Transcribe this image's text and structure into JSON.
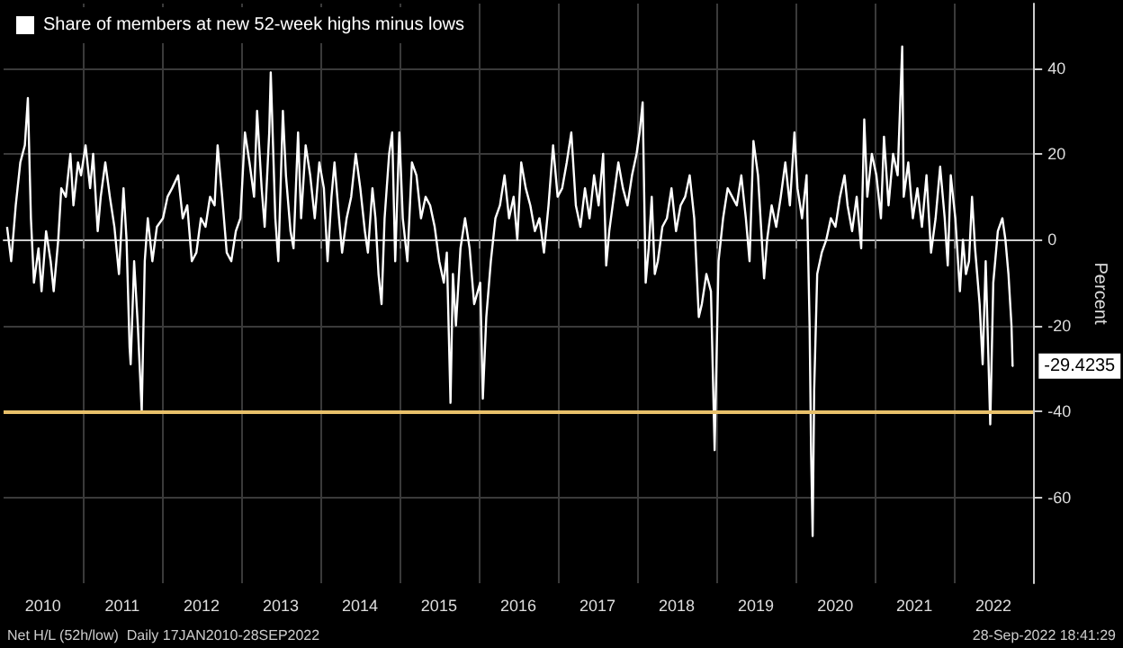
{
  "chart_data": {
    "type": "line",
    "ylabel": "Percent",
    "legend": "top left",
    "grid": true,
    "marker": "none",
    "line_style": "solid",
    "xlim": [
      "2010-01-01",
      "2023-01-01"
    ],
    "xticks": [
      {
        "value": "2010-07-02",
        "label": "2010"
      },
      {
        "value": "2011-07-02",
        "label": "2011"
      },
      {
        "value": "2012-07-02",
        "label": "2012"
      },
      {
        "value": "2013-07-02",
        "label": "2013"
      },
      {
        "value": "2014-07-02",
        "label": "2014"
      },
      {
        "value": "2015-07-02",
        "label": "2015"
      },
      {
        "value": "2016-07-02",
        "label": "2016"
      },
      {
        "value": "2017-07-02",
        "label": "2017"
      },
      {
        "value": "2018-07-02",
        "label": "2018"
      },
      {
        "value": "2019-07-02",
        "label": "2019"
      },
      {
        "value": "2020-07-02",
        "label": "2020"
      },
      {
        "value": "2021-07-02",
        "label": "2021"
      },
      {
        "value": "2022-07-02",
        "label": "2022"
      },
      {
        "value": "2011-01-01",
        "label": null
      },
      {
        "value": "2012-01-01",
        "label": null
      },
      {
        "value": "2013-01-01",
        "label": null
      },
      {
        "value": "2014-01-01",
        "label": null
      },
      {
        "value": "2015-01-01",
        "label": null
      },
      {
        "value": "2016-01-01",
        "label": null
      },
      {
        "value": "2017-01-01",
        "label": null
      },
      {
        "value": "2018-01-01",
        "label": null
      },
      {
        "value": "2019-01-01",
        "label": null
      },
      {
        "value": "2020-01-01",
        "label": null
      },
      {
        "value": "2021-01-01",
        "label": null
      },
      {
        "value": "2022-01-01",
        "label": null
      }
    ],
    "ylim": [
      -80,
      55
    ],
    "yticks": [
      -60,
      -40,
      -20,
      0,
      20,
      40
    ],
    "ref_lines": [
      {
        "axis": "y",
        "value": -40,
        "color": "#e8c06a"
      }
    ],
    "annotations": [
      {
        "text": "-29.4235",
        "x": "2022-09-28",
        "y": -29.4235
      },
      "Net H/L (52h/low)  Daily 17JAN2010-28SEP2022",
      "28-Sep-2022 18:41:29"
    ],
    "x": [
      "2010-01-17",
      "2010-02-05",
      "2010-02-26",
      "2010-03-19",
      "2010-04-09",
      "2010-04-23",
      "2010-05-07",
      "2010-05-21",
      "2010-06-11",
      "2010-06-25",
      "2010-07-16",
      "2010-08-06",
      "2010-08-20",
      "2010-09-10",
      "2010-09-24",
      "2010-10-15",
      "2010-11-05",
      "2010-11-19",
      "2010-12-10",
      "2010-12-24",
      "2011-01-14",
      "2011-02-04",
      "2011-02-18",
      "2011-03-11",
      "2011-03-25",
      "2011-04-15",
      "2011-05-06",
      "2011-05-27",
      "2011-06-17",
      "2011-07-08",
      "2011-07-22",
      "2011-08-05",
      "2011-08-10",
      "2011-08-26",
      "2011-09-12",
      "2011-09-30",
      "2011-10-14",
      "2011-10-28",
      "2011-11-18",
      "2011-12-09",
      "2012-01-06",
      "2012-01-27",
      "2012-02-17",
      "2012-03-16",
      "2012-04-06",
      "2012-04-27",
      "2012-05-18",
      "2012-06-08",
      "2012-06-29",
      "2012-07-20",
      "2012-08-10",
      "2012-08-31",
      "2012-09-14",
      "2012-10-05",
      "2012-10-26",
      "2012-11-16",
      "2012-12-07",
      "2012-12-28",
      "2013-01-18",
      "2013-02-08",
      "2013-03-01",
      "2013-03-15",
      "2013-04-05",
      "2013-04-19",
      "2013-05-10",
      "2013-05-17",
      "2013-06-07",
      "2013-06-21",
      "2013-07-12",
      "2013-07-26",
      "2013-08-16",
      "2013-08-30",
      "2013-09-20",
      "2013-10-04",
      "2013-10-25",
      "2013-11-15",
      "2013-12-06",
      "2013-12-27",
      "2014-01-17",
      "2014-02-03",
      "2014-02-21",
      "2014-03-07",
      "2014-03-28",
      "2014-04-11",
      "2014-05-02",
      "2014-05-23",
      "2014-06-13",
      "2014-07-04",
      "2014-07-25",
      "2014-08-08",
      "2014-08-29",
      "2014-09-12",
      "2014-09-26",
      "2014-10-10",
      "2014-10-24",
      "2014-11-14",
      "2014-11-28",
      "2014-12-12",
      "2014-12-31",
      "2015-01-16",
      "2015-02-06",
      "2015-02-27",
      "2015-03-20",
      "2015-04-10",
      "2015-05-01",
      "2015-05-22",
      "2015-06-12",
      "2015-07-03",
      "2015-07-24",
      "2015-08-07",
      "2015-08-24",
      "2015-09-04",
      "2015-09-18",
      "2015-10-09",
      "2015-10-30",
      "2015-11-20",
      "2015-12-11",
      "2016-01-08",
      "2016-01-20",
      "2016-02-05",
      "2016-02-26",
      "2016-03-18",
      "2016-04-08",
      "2016-04-29",
      "2016-05-20",
      "2016-06-10",
      "2016-06-27",
      "2016-07-15",
      "2016-08-05",
      "2016-08-26",
      "2016-09-16",
      "2016-10-07",
      "2016-10-28",
      "2016-11-18",
      "2016-12-09",
      "2016-12-30",
      "2017-01-20",
      "2017-02-10",
      "2017-03-03",
      "2017-03-24",
      "2017-04-14",
      "2017-05-05",
      "2017-05-26",
      "2017-06-16",
      "2017-07-07",
      "2017-07-28",
      "2017-08-11",
      "2017-08-25",
      "2017-09-15",
      "2017-10-06",
      "2017-10-27",
      "2017-11-17",
      "2017-12-08",
      "2017-12-29",
      "2018-01-12",
      "2018-01-26",
      "2018-02-09",
      "2018-02-23",
      "2018-03-09",
      "2018-03-23",
      "2018-04-06",
      "2018-04-27",
      "2018-05-18",
      "2018-06-08",
      "2018-06-29",
      "2018-07-20",
      "2018-08-10",
      "2018-08-31",
      "2018-09-21",
      "2018-10-12",
      "2018-10-26",
      "2018-11-16",
      "2018-12-07",
      "2018-12-24",
      "2019-01-11",
      "2019-02-01",
      "2019-02-22",
      "2019-03-15",
      "2019-04-05",
      "2019-04-26",
      "2019-05-17",
      "2019-06-03",
      "2019-06-21",
      "2019-07-12",
      "2019-08-09",
      "2019-08-23",
      "2019-09-13",
      "2019-10-04",
      "2019-10-25",
      "2019-11-15",
      "2019-12-06",
      "2019-12-27",
      "2020-01-10",
      "2020-01-31",
      "2020-02-21",
      "2020-03-06",
      "2020-03-13",
      "2020-03-20",
      "2020-03-27",
      "2020-04-10",
      "2020-05-01",
      "2020-05-22",
      "2020-06-12",
      "2020-07-03",
      "2020-07-24",
      "2020-08-14",
      "2020-08-28",
      "2020-09-18",
      "2020-10-09",
      "2020-10-30",
      "2020-11-13",
      "2020-11-27",
      "2020-12-18",
      "2021-01-08",
      "2021-01-29",
      "2021-02-12",
      "2021-03-05",
      "2021-03-26",
      "2021-04-16",
      "2021-05-07",
      "2021-05-14",
      "2021-06-04",
      "2021-06-25",
      "2021-07-16",
      "2021-08-06",
      "2021-08-27",
      "2021-09-17",
      "2021-10-08",
      "2021-10-29",
      "2021-11-19",
      "2021-12-03",
      "2021-12-17",
      "2022-01-07",
      "2022-01-28",
      "2022-02-11",
      "2022-02-25",
      "2022-03-11",
      "2022-03-25",
      "2022-04-08",
      "2022-04-29",
      "2022-05-13",
      "2022-05-27",
      "2022-06-17",
      "2022-07-01",
      "2022-07-22",
      "2022-08-12",
      "2022-08-26",
      "2022-09-09",
      "2022-09-23",
      "2022-09-28"
    ],
    "series": [
      {
        "name": "Share of members at new 52-week highs minus lows",
        "color": "#ffffff",
        "values": [
          3,
          -5,
          8,
          18,
          22,
          33,
          5,
          -10,
          -2,
          -12,
          2,
          -5,
          -12,
          0,
          12,
          10,
          20,
          8,
          18,
          15,
          22,
          12,
          20,
          2,
          10,
          18,
          10,
          3,
          -8,
          12,
          0,
          -25,
          -29,
          -5,
          -20,
          -40,
          -5,
          5,
          -5,
          3,
          5,
          10,
          12,
          15,
          5,
          8,
          -5,
          -3,
          5,
          3,
          10,
          8,
          22,
          10,
          -3,
          -5,
          2,
          5,
          25,
          18,
          10,
          30,
          12,
          3,
          25,
          39,
          5,
          -5,
          30,
          15,
          2,
          -2,
          25,
          5,
          22,
          15,
          5,
          18,
          12,
          -5,
          10,
          18,
          5,
          -3,
          5,
          10,
          20,
          12,
          2,
          -3,
          12,
          5,
          -8,
          -15,
          5,
          20,
          25,
          -5,
          25,
          5,
          -5,
          18,
          15,
          5,
          10,
          8,
          3,
          -5,
          -10,
          -3,
          -38,
          -8,
          -20,
          -2,
          5,
          -2,
          -15,
          -10,
          -37,
          -18,
          -5,
          5,
          8,
          15,
          5,
          10,
          0,
          18,
          12,
          8,
          2,
          5,
          -3,
          8,
          22,
          10,
          12,
          18,
          25,
          8,
          3,
          12,
          5,
          15,
          8,
          20,
          -6,
          2,
          10,
          18,
          12,
          8,
          15,
          20,
          25,
          32,
          -10,
          -2,
          10,
          -8,
          -5,
          3,
          5,
          12,
          2,
          8,
          10,
          15,
          5,
          -18,
          -15,
          -8,
          -12,
          -49,
          -5,
          5,
          12,
          10,
          8,
          15,
          5,
          -5,
          23,
          15,
          -9,
          0,
          8,
          3,
          10,
          18,
          8,
          25,
          12,
          5,
          15,
          -20,
          -50,
          -69,
          -35,
          -8,
          -3,
          0,
          5,
          3,
          10,
          15,
          8,
          2,
          10,
          -2,
          28,
          10,
          20,
          15,
          5,
          24,
          8,
          20,
          15,
          45,
          10,
          18,
          5,
          12,
          3,
          15,
          -3,
          5,
          17,
          5,
          -6,
          15,
          5,
          -12,
          0,
          -8,
          -5,
          10,
          -2,
          -15,
          -29,
          -5,
          -43,
          -10,
          2,
          5,
          0,
          -8,
          -20,
          -29.4235
        ]
      }
    ]
  }
}
